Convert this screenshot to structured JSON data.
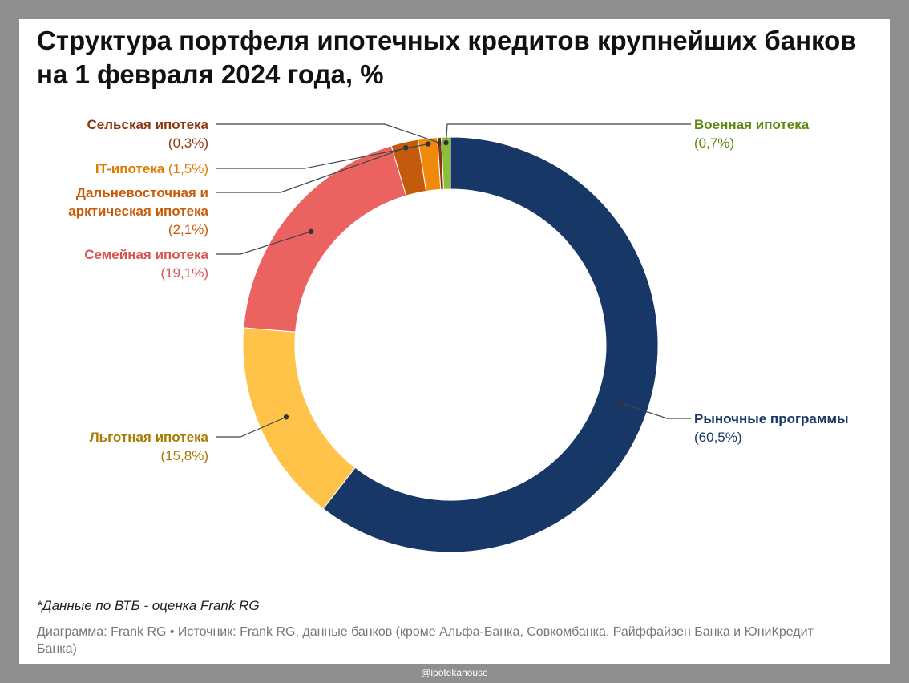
{
  "title": "Структура портфеля ипотечных кредитов крупнейших банков на 1 февраля 2024 года, %",
  "footnote": "*Данные по ВТБ - оценка Frank RG",
  "source": "Диаграмма: Frank RG • Источник: Frank RG, данные банков (кроме Альфа-Банка, Совкомбанка, Райффайзен Банка и ЮниКредит Банка)",
  "watermark": "@ipotekahouse",
  "chart_data": {
    "type": "pie",
    "donut": true,
    "start": "12 o'clock, clockwise",
    "slices": [
      {
        "name": "Рыночные программы",
        "value": 60.5,
        "value_label": "(60,5%)",
        "color": "#173767",
        "label_side": "right"
      },
      {
        "name": "Льготная ипотека",
        "value": 15.8,
        "value_label": "(15,8%)",
        "color": "#ffc34a",
        "label_side": "left"
      },
      {
        "name": "Семейная ипотека",
        "value": 19.1,
        "value_label": "(19,1%)",
        "color": "#eb6360",
        "label_side": "left"
      },
      {
        "name": "Дальневосточная и арктическая ипотека",
        "name_lines": [
          "Дальневосточная и",
          "арктическая ипотека"
        ],
        "value": 2.1,
        "value_label": "(2,1%)",
        "color": "#c45a0b",
        "label_side": "left"
      },
      {
        "name": "IT-ипотека",
        "value": 1.5,
        "value_label": "(1,5%)",
        "color": "#f08a0c",
        "label_side": "left",
        "inline_value": true
      },
      {
        "name": "Сельская ипотека",
        "value": 0.3,
        "value_label": "(0,3%)",
        "color": "#8b3510",
        "label_side": "left"
      },
      {
        "name": "Военная ипотека",
        "value": 0.7,
        "value_label": "(0,7%)",
        "color": "#8bbf3a",
        "label_side": "right"
      }
    ],
    "label_colors": {
      "Рыночные программы": "#173767",
      "Льготная ипотека": "#a57a00",
      "Семейная ипотека": "#d9534f",
      "Дальневосточная и арктическая ипотека": "#c65a08",
      "IT-ипотека": "#e07b00",
      "Сельская ипотека": "#8b3510",
      "Военная ипотека": "#5c8a10"
    }
  }
}
